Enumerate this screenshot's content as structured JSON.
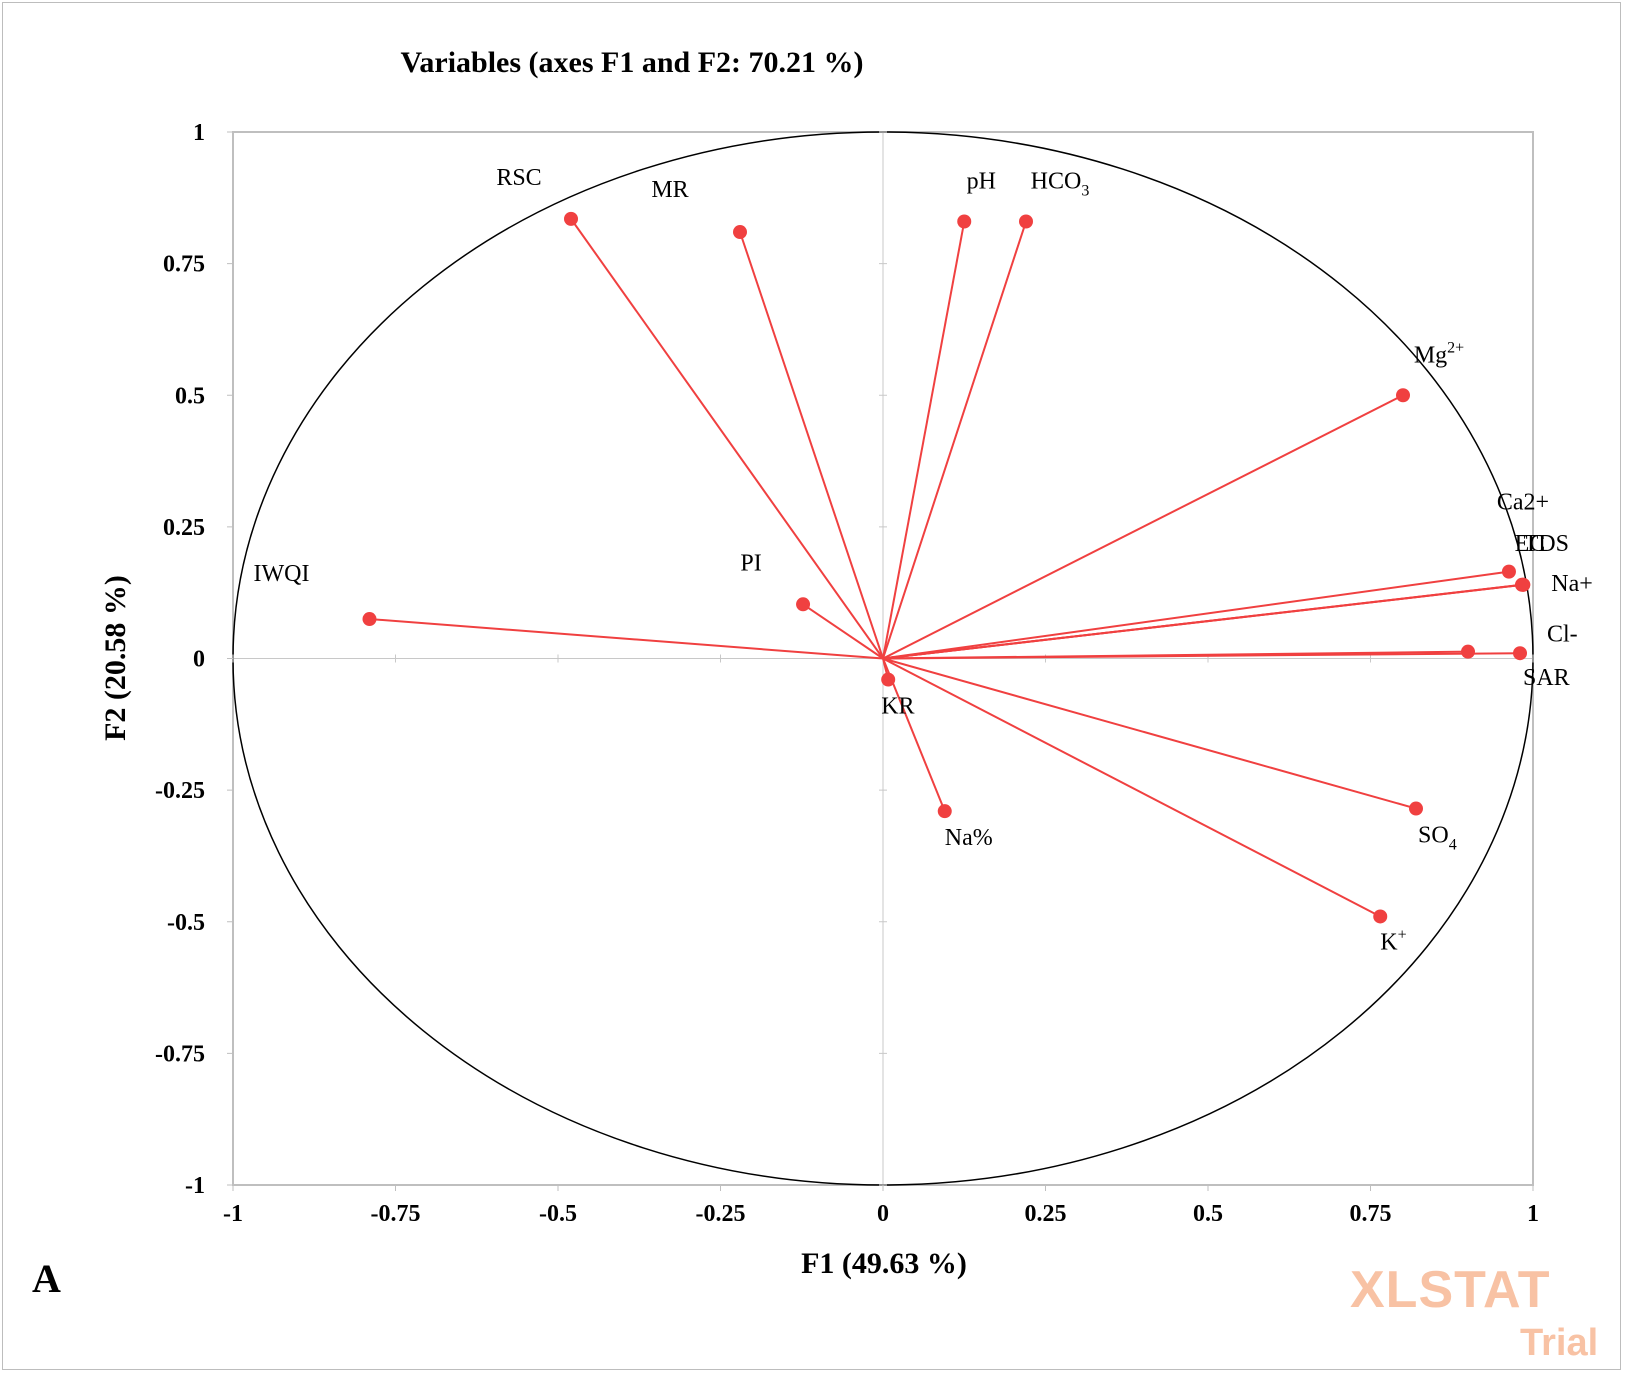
{
  "chart_data": {
    "type": "scatter",
    "title": "Variables (axes F1 and F2: 70.21 %)",
    "xlabel": "F1 (49.63 %)",
    "ylabel": "F2 (20.58 %)",
    "xlim": [
      -1,
      1
    ],
    "ylim": [
      -1,
      1
    ],
    "xticks": [
      "-1",
      "-0.75",
      "-0.5",
      "-0.25",
      "0",
      "0.25",
      "0.5",
      "0.75",
      "1"
    ],
    "yticks": [
      "1",
      "0.75",
      "0.5",
      "0.25",
      "0",
      "-0.25",
      "-0.5",
      "-0.75",
      "-1"
    ],
    "correlation_circle": true,
    "vectors_from_origin": true,
    "point_color": "#f04040",
    "line_color": "#f04040",
    "points": [
      {
        "label": "RSC",
        "sup": "",
        "sub": "",
        "x": -0.48,
        "y": 0.835
      },
      {
        "label": "MR",
        "sup": "",
        "sub": "",
        "x": -0.22,
        "y": 0.81
      },
      {
        "label": "pH",
        "sup": "",
        "sub": "",
        "x": 0.125,
        "y": 0.83
      },
      {
        "label": "HCO",
        "sup": "",
        "sub": "3",
        "x": 0.22,
        "y": 0.83
      },
      {
        "label": "Mg",
        "sup": "2+",
        "sub": "",
        "x": 0.8,
        "y": 0.5
      },
      {
        "label": "Ca2+",
        "sup": "",
        "sub": "",
        "x": 0.963,
        "y": 0.165
      },
      {
        "label": "EC",
        "sup": "",
        "sub": "",
        "x": 0.983,
        "y": 0.14
      },
      {
        "label": "TDS",
        "sup": "",
        "sub": "",
        "x": 0.985,
        "y": 0.14
      },
      {
        "label": "Na+",
        "sup": "",
        "sub": "",
        "x": 0.985,
        "y": 0.14
      },
      {
        "label": "Cl-",
        "sup": "",
        "sub": "",
        "x": 0.9,
        "y": 0.013
      },
      {
        "label": "SAR",
        "sup": "",
        "sub": "",
        "x": 0.98,
        "y": 0.01
      },
      {
        "label": "IWQI",
        "sup": "",
        "sub": "",
        "x": -0.79,
        "y": 0.075
      },
      {
        "label": "PI",
        "sup": "",
        "sub": "",
        "x": -0.123,
        "y": 0.103
      },
      {
        "label": "KR",
        "sup": "",
        "sub": "",
        "x": 0.008,
        "y": -0.04
      },
      {
        "label": "Na%",
        "sup": "",
        "sub": "",
        "x": 0.095,
        "y": -0.29
      },
      {
        "label": "SO",
        "sup": "",
        "sub": "4",
        "x": 0.82,
        "y": -0.285
      },
      {
        "label": "K",
        "sup": "+",
        "sub": "",
        "x": 0.765,
        "y": -0.49
      }
    ]
  },
  "panel_letter": "A",
  "watermark": {
    "line1": "XLSTAT",
    "line2": "Trial"
  }
}
